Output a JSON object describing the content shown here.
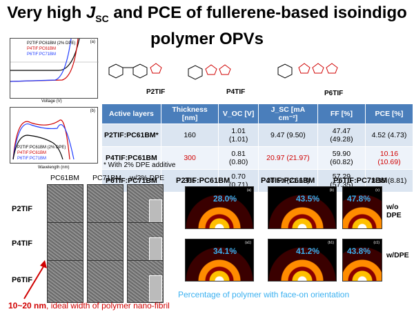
{
  "title": {
    "line1_pre": "Very high ",
    "jsc": "J",
    "jsc_sub": "SC",
    "line1_post": " and PCE of fullerene-based isoindigo",
    "line2": "polymer OPVs"
  },
  "jv_panel": {
    "tag": "(a)",
    "ylabel": "Current Density (mA/cm²)",
    "xlabel": "Voltage (V)",
    "legend": [
      "P2TIF:PC61BM (2% DPE)",
      "P4TIF:PC61BM",
      "P6TIF:PC71BM"
    ],
    "colors": [
      "#000000",
      "#d00000",
      "#1f3cff"
    ]
  },
  "eqe_panel": {
    "tag": "(b)",
    "ylabel": "EQE (%)",
    "xlabel": "Wavelength (nm)",
    "legend": [
      "P2TIF:PC61BM (2% DPE)",
      "P4TIF:PC61BM",
      "P6TIF:PC71BM"
    ]
  },
  "structures": {
    "labels": [
      "P2TIF",
      "P4TIF",
      "P6TIF"
    ]
  },
  "table": {
    "headers": [
      "Active layers",
      "Thickness [nm]",
      "V_OC [V]",
      "J_SC [mA cm⁻²]",
      "FF [%]",
      "PCE [%]"
    ],
    "rows": [
      {
        "layer": "P2TIF:PC61BM*",
        "thickness": "160",
        "voc": "1.01 (1.01)",
        "jsc": "9.47 (9.50)",
        "ff": "47.47 (49.28)",
        "pce": "4.52 (4.73)"
      },
      {
        "layer": "P4TIF:PC61BM",
        "thickness": "300",
        "voc": "0.81 (0.80)",
        "jsc": "20.97 (21.97)",
        "ff": "59.90 (60.82)",
        "pce": "10.16 (10.69)"
      },
      {
        "layer": "P6TIF:PC71BM",
        "thickness": "365",
        "voc": "0.70 (0.71)",
        "jsc": "20.59 (21.63)",
        "ff": "57.29 (57.35)",
        "pce": "8.35 (8.81)"
      }
    ],
    "note": "* With 2% DPE additive"
  },
  "tem": {
    "cols": [
      "PC61BM",
      "PC71BM",
      "w/2% DPE"
    ],
    "rows": [
      "P2TIF",
      "P4TIF",
      "P6TIF"
    ]
  },
  "xrd": {
    "cols": [
      "P2TIF:PC61BM",
      "P4TIF:PC61BM",
      "P6TIF:PC71BM"
    ],
    "top": [
      {
        "tag": "(a)",
        "pct": "28.0%"
      },
      {
        "tag": "(b)",
        "pct": "43.5%"
      },
      {
        "tag": "(c)",
        "pct": "47.8%"
      }
    ],
    "bottom": [
      {
        "tag": "(a1)",
        "pct": "34.1%"
      },
      {
        "tag": "(b1)",
        "pct": "41.2%"
      },
      {
        "tag": "(c1)",
        "pct": "43.8%"
      }
    ],
    "cond_top": "w/o DPE",
    "cond_bottom": "w/DPE"
  },
  "footer": {
    "red_bold": "10~20 nm",
    "red_rest": ", ideal width of polymer nano-fibril",
    "blue": "Percentage of polymer with face-on orientation"
  }
}
